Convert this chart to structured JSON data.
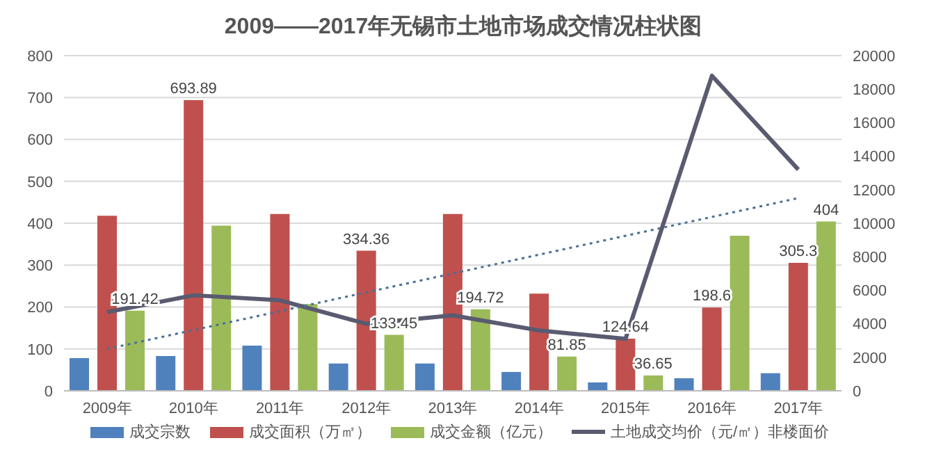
{
  "chart_data": {
    "type": "bar",
    "title": "2009——2017年无锡市土地市场成交情况柱状图",
    "categories": [
      "2009年",
      "2010年",
      "2011年",
      "2012年",
      "2013年",
      "2014年",
      "2015年",
      "2016年",
      "2017年"
    ],
    "series": [
      {
        "name": "成交宗数",
        "color": "#4f81bd",
        "values": [
          78,
          83,
          108,
          65,
          65,
          45,
          20,
          30,
          42
        ]
      },
      {
        "name": "成交面积（万㎡）",
        "color": "#c0504d",
        "values": [
          418,
          693.89,
          422,
          334.36,
          422,
          232,
          124.64,
          198.6,
          305.3
        ],
        "value_labels": [
          null,
          "693.89",
          null,
          "334.36",
          null,
          null,
          "124.64",
          "198.6",
          "305.3"
        ]
      },
      {
        "name": "成交金额（亿元）",
        "color": "#9bbb59",
        "values": [
          191.42,
          394,
          207,
          133.45,
          194.72,
          81.85,
          36.65,
          370,
          404
        ],
        "value_labels": [
          "191.42",
          null,
          null,
          "133.45",
          "194.72",
          "81.85",
          "36.65",
          null,
          "404"
        ]
      },
      {
        "name": "土地成交均价（元/㎡）非楼面价",
        "type": "line",
        "axis": "y2",
        "color": "#5a5b70",
        "values": [
          4700,
          5700,
          5400,
          4000,
          4500,
          3600,
          3100,
          18800,
          13200
        ]
      },
      {
        "type": "line",
        "color": "#4a6f96",
        "line_style": "dotted",
        "values": [
          100,
          145,
          190,
          235,
          280,
          325,
          370,
          415,
          460
        ]
      }
    ],
    "ylim": [
      0,
      800
    ],
    "yticks": [
      0,
      100,
      200,
      300,
      400,
      500,
      600,
      700,
      800
    ],
    "y2lim": [
      0,
      20000
    ],
    "y2ticks": [
      0,
      2000,
      4000,
      6000,
      8000,
      10000,
      12000,
      14000,
      16000,
      18000,
      20000
    ],
    "grid": "y",
    "legend": "bottom",
    "marker": "none"
  }
}
